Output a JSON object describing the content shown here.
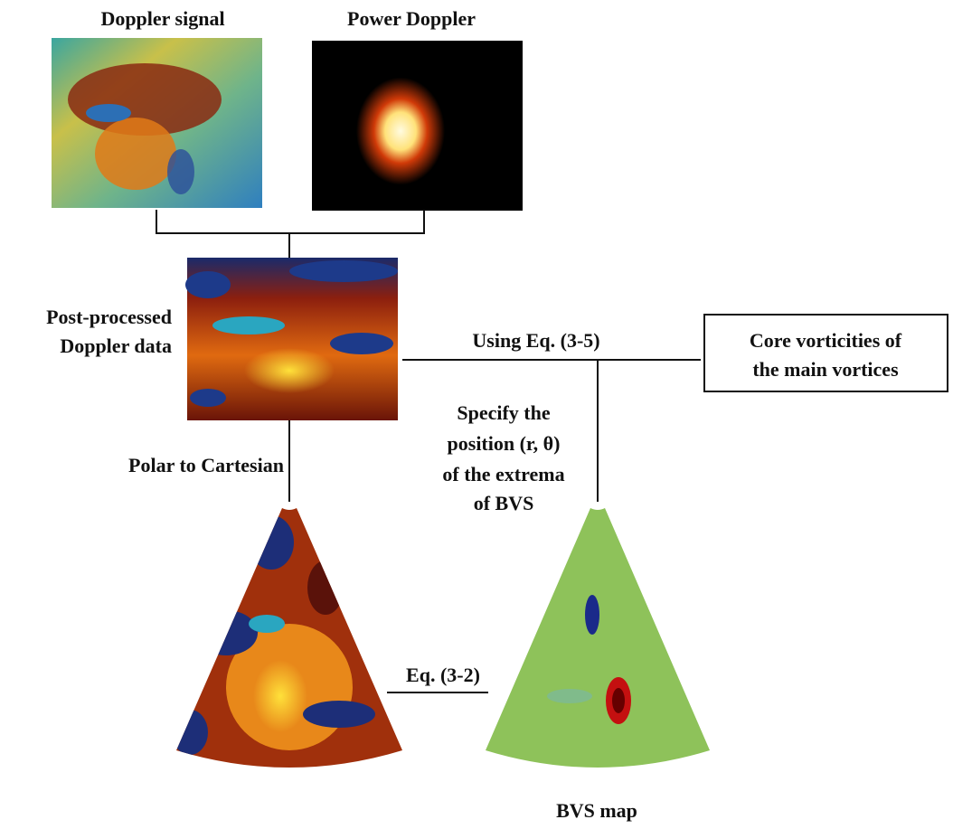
{
  "panels": {
    "doppler_signal": "Doppler signal",
    "power_doppler": "Power Doppler",
    "post_processed": [
      "Post-processed",
      "Doppler data"
    ],
    "bvs_map": "BVS map"
  },
  "steps": {
    "polar_to_cartesian": "Polar to Cartesian",
    "using_eq": "Using Eq. (3-5)",
    "eq_3_2": "Eq. (3-2)",
    "specify": [
      "Specify the",
      "position (r, θ)",
      "of the extrema",
      "of BVS"
    ]
  },
  "output_box": [
    "Core vorticities of",
    "the main vortices"
  ]
}
